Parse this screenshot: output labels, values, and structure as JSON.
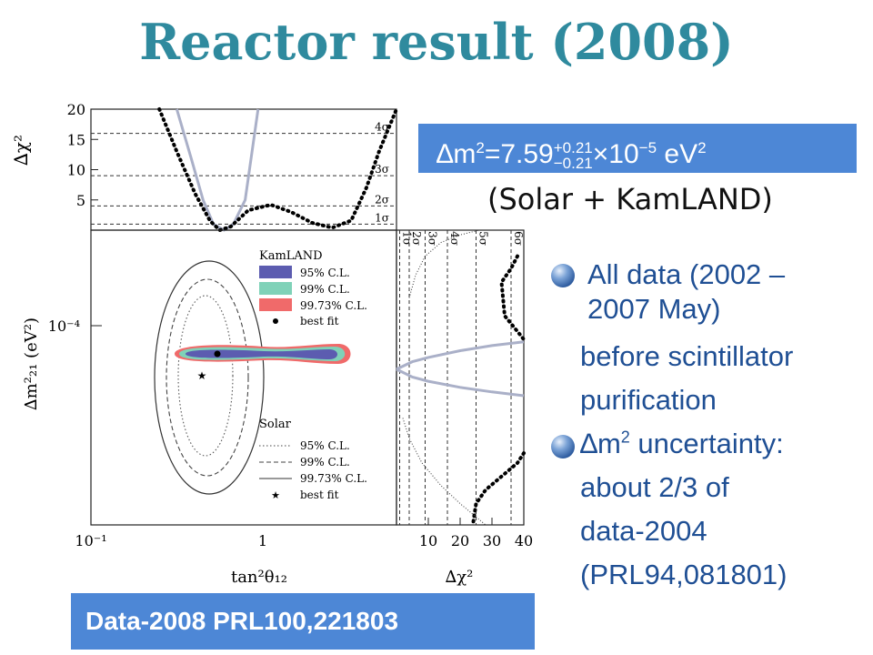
{
  "title": "Reactor result (2008)",
  "dm2_box": {
    "base": "∆m",
    "sup1": "2",
    "eq": "=7.59",
    "sup2": "+0.21",
    "sub2": "−0.21",
    "times": "×10",
    "sup3": "−5",
    "unit": " eV",
    "sup4": "2"
  },
  "solar_note": "(Solar + KamLAND)",
  "bullets": {
    "b1_l1": "All data (2002 –",
    "b1_l2": "2007 May)",
    "b1_l3": "before scintillator",
    "b1_l4": "purification",
    "b2_l1a": "∆m",
    "b2_l1sup": "2",
    "b2_l1b": " uncertainty:",
    "b2_l2": "about 2/3 of",
    "b2_l3": "data-2004",
    "b2_l4": "(PRL94,081801)"
  },
  "reference": "Data-2008  PRL100,221803",
  "colors": {
    "title": "#2f8a9e",
    "box": "#4d87d6",
    "bullet_text": "#1f4f94",
    "kam95": "#5c5cb0",
    "kam99": "#7fd2b8",
    "kam9973": "#f06a6a"
  },
  "chart_data": [
    {
      "type": "line",
      "panel": "top-left",
      "ylabel": "∆χ²",
      "y_ticks": [
        "5",
        "10",
        "15",
        "20"
      ],
      "ylim": [
        0,
        20
      ],
      "x_scale": "log",
      "xlim": [
        0.1,
        5
      ],
      "sigma_lines": [
        {
          "label": "1σ",
          "y": 1
        },
        {
          "label": "2σ",
          "y": 4
        },
        {
          "label": "3σ",
          "y": 9
        },
        {
          "label": "4σ",
          "y": 16
        }
      ],
      "series": [
        {
          "style": "gray-solid",
          "x": [
            0.3,
            0.36,
            0.42,
            0.48,
            0.55,
            0.62,
            0.72,
            0.85
          ],
          "y": [
            20,
            12,
            5,
            1,
            0,
            1,
            5,
            20
          ]
        },
        {
          "style": "black-dotted",
          "x": [
            0.24,
            0.3,
            0.38,
            0.46,
            0.52,
            0.6,
            0.75,
            1.0,
            1.3,
            1.7,
            2.2,
            2.8,
            3.4,
            4.0,
            5.0
          ],
          "y": [
            20,
            13,
            6,
            1.5,
            0,
            0.6,
            3.3,
            4.2,
            3.0,
            1.2,
            0.4,
            1.6,
            7,
            13,
            20
          ]
        }
      ]
    },
    {
      "type": "contour",
      "panel": "main",
      "xlabel": "tan²θ₁₂",
      "ylabel": "∆m²₂₁ (eV²)",
      "x_scale": "log",
      "y_scale": "log",
      "xlim": [
        0.1,
        5
      ],
      "ylim": [
        2e-05,
        0.00025
      ],
      "x_ticks": [
        "10⁻¹",
        "1"
      ],
      "y_ticks": [
        "10⁻⁴"
      ],
      "kamland_best_fit": {
        "x": 0.56,
        "y": 7.59e-05
      },
      "solar_best_fit": {
        "x": 0.47,
        "y": 6.3e-05
      },
      "legend": {
        "position": "top-right",
        "title": "KamLAND",
        "entries": [
          "95% C.L.",
          "99% C.L.",
          "99.73% C.L.",
          "best fit"
        ],
        "title2": "Solar",
        "entries2": [
          "95% C.L.",
          "99% C.L.",
          "99.73% C.L.",
          "best fit"
        ]
      }
    },
    {
      "type": "line",
      "panel": "right",
      "xlabel": "∆χ²",
      "x_ticks": [
        "10",
        "20",
        "30",
        "40"
      ],
      "xlim": [
        0,
        40
      ],
      "sigma_lines": [
        {
          "label": "1σ",
          "x": 1
        },
        {
          "label": "2σ",
          "x": 4
        },
        {
          "label": "3σ",
          "x": 9
        },
        {
          "label": "4σ",
          "x": 16
        },
        {
          "label": "5σ",
          "x": 25
        },
        {
          "label": "6σ",
          "x": 36
        }
      ],
      "series": [
        {
          "style": "gray-solid",
          "x": [
            0,
            5,
            10,
            20,
            30,
            40
          ],
          "y": [
            7.59e-05,
            8.1e-05,
            8.4e-05,
            8.9e-05,
            9.3e-05,
            9.6e-05
          ]
        },
        {
          "style": "gray-solid",
          "x": [
            0,
            5,
            10,
            20,
            30,
            40
          ],
          "y": [
            7.59e-05,
            7.1e-05,
            6.85e-05,
            6.5e-05,
            6.25e-05,
            6.05e-05
          ]
        },
        {
          "style": "black-dotted",
          "x": [
            38,
            36,
            33,
            34,
            38,
            40
          ],
          "y": [
            0.0002,
            0.00018,
            0.00016,
            0.00012,
            0.000105,
            9.8e-05
          ]
        },
        {
          "style": "black-dotted",
          "x": [
            40,
            38,
            34,
            28,
            25,
            24
          ],
          "y": [
            3.7e-05,
            3.4e-05,
            3.1e-05,
            2.7e-05,
            2.4e-05,
            2e-05
          ]
        },
        {
          "style": "black-small-dotted",
          "x": [
            4,
            6,
            9,
            14,
            20,
            26
          ],
          "y": [
            0.00014,
            0.00017,
            0.0002,
            0.000225,
            0.00024,
            0.00025
          ]
        },
        {
          "style": "black-small-dotted",
          "x": [
            2,
            4,
            8,
            14,
            20,
            28
          ],
          "y": [
            5e-05,
            4.2e-05,
            3.4e-05,
            2.8e-05,
            2.4e-05,
            2e-05
          ]
        }
      ]
    }
  ]
}
